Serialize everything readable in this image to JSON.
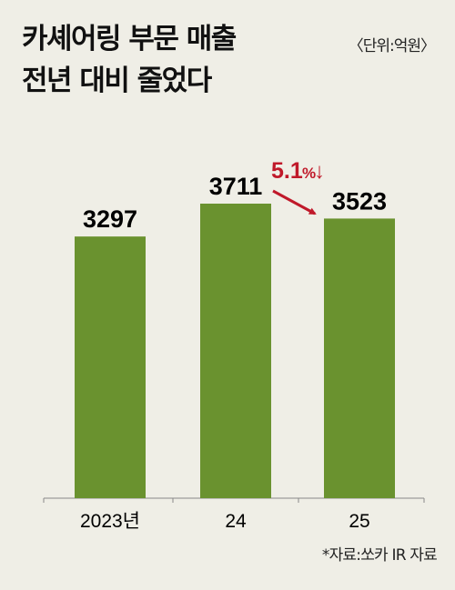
{
  "title_lines": [
    "카셰어링 부문 매출",
    "전년 대비 줄었다"
  ],
  "unit_label": "〈단위:억원〉",
  "source": "*자료:쏘카 IR 자료",
  "annotation": {
    "number": "5.1",
    "suffix": "%",
    "arrow": "↓",
    "color": "#c0192a"
  },
  "colors": {
    "bar": "#6a922f",
    "background": "#efeee6",
    "axis": "#888888"
  },
  "chart_data": {
    "type": "bar",
    "categories": [
      "2023년",
      "24",
      "25"
    ],
    "values": [
      3297,
      3711,
      3523
    ],
    "value_labels": [
      "3297",
      "3711",
      "3523"
    ],
    "title": "카셰어링 부문 매출 전년 대비 줄었다",
    "xlabel": "",
    "ylabel": "",
    "unit": "억원",
    "grid": false
  }
}
